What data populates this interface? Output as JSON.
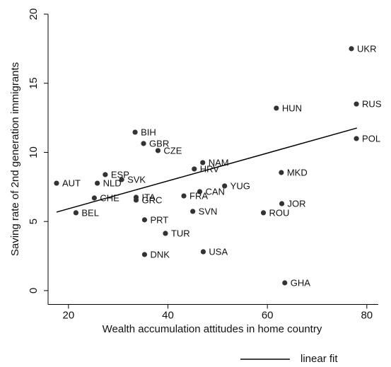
{
  "chart_data": {
    "type": "scatter",
    "xlabel": "Wealth accumulation attitudes in home country",
    "ylabel": "Saving rate of 2nd generation immigrants",
    "xlim": [
      15.9,
      82.3
    ],
    "xticks": [
      20,
      40,
      60,
      80
    ],
    "ylim": [
      -1,
      20
    ],
    "yticks": [
      0,
      5,
      10,
      15,
      20
    ],
    "legend": "bottom",
    "points": {
      "color": "#333333",
      "labels": [
        "UKR",
        "RUS",
        "POL",
        "HUN",
        "BIH",
        "GBR",
        "CZE",
        "NAM",
        "HRV",
        "MKD",
        "ESP",
        "SVK",
        "AUT",
        "NLD",
        "YUG",
        "CAN",
        "FRA",
        "ITA",
        "CHE",
        "GRC",
        "JOR",
        "ROU",
        "SVN",
        "BEL",
        "PRT",
        "TUR",
        "USA",
        "DNK",
        "GHA"
      ],
      "x": [
        76.9,
        77.9,
        77.9,
        61.8,
        33.4,
        35.1,
        38.0,
        47.0,
        45.3,
        62.8,
        27.4,
        30.7,
        17.6,
        25.8,
        51.4,
        46.4,
        43.2,
        33.6,
        25.2,
        33.6,
        62.9,
        59.2,
        45.0,
        21.5,
        35.3,
        39.5,
        47.1,
        35.3,
        63.5
      ],
      "values": [
        17.5,
        13.5,
        11.0,
        13.2,
        11.46,
        10.64,
        10.13,
        9.26,
        8.8,
        8.54,
        8.39,
        8.03,
        7.77,
        7.77,
        7.57,
        7.16,
        6.85,
        6.75,
        6.7,
        6.55,
        6.29,
        5.63,
        5.73,
        5.63,
        5.12,
        4.14,
        2.81,
        2.61,
        0.56
      ]
    },
    "series": [
      {
        "name": "linear fit",
        "color": "#000000",
        "x": [
          17.6,
          78.0
        ],
        "values": [
          5.68,
          11.76
        ]
      }
    ]
  }
}
